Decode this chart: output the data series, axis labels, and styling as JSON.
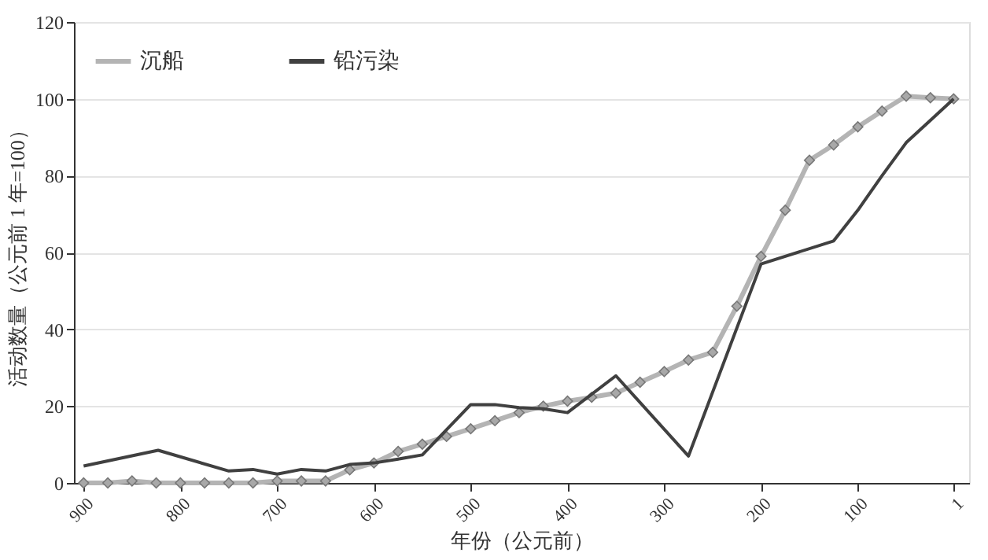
{
  "chart_data": {
    "type": "line",
    "xlabel": "年份（公元前）",
    "ylabel": "活动数量（公元前 1 年=100）",
    "xlim": [
      910,
      -15
    ],
    "xticks": [
      900,
      800,
      700,
      600,
      500,
      400,
      300,
      200,
      100,
      1
    ],
    "ylim": [
      0,
      120
    ],
    "yticks": [
      0,
      20,
      40,
      60,
      80,
      100,
      120
    ],
    "grid": "y",
    "legend": "top left",
    "series": [
      {
        "name": "沉船",
        "color": "#b4b4b4",
        "marker": "diamond",
        "x": [
          900,
          875,
          850,
          825,
          800,
          775,
          750,
          725,
          700,
          675,
          650,
          625,
          600,
          575,
          550,
          525,
          500,
          475,
          450,
          425,
          400,
          375,
          350,
          325,
          300,
          275,
          250,
          225,
          200,
          175,
          150,
          125,
          100,
          75,
          50,
          25,
          1
        ],
        "values": [
          0,
          0,
          0.5,
          0,
          0,
          0,
          0,
          0,
          0.5,
          0.5,
          0.5,
          3.4,
          5.2,
          8.2,
          10.1,
          12.1,
          14.1,
          16.2,
          18.3,
          20,
          21.3,
          22.3,
          23.4,
          26.2,
          29,
          32,
          34,
          46,
          59,
          71,
          84,
          88,
          92.7,
          96.8,
          100.7,
          100.3,
          100
        ]
      },
      {
        "name": "铅污染",
        "color": "#404040",
        "marker": "none",
        "x": [
          900,
          823,
          750,
          725,
          700,
          675,
          650,
          625,
          600,
          575,
          550,
          500,
          475,
          450,
          425,
          400,
          350,
          275,
          200,
          125,
          100,
          75,
          50,
          25,
          1
        ],
        "values": [
          4.4,
          8.5,
          3.1,
          3.5,
          2.3,
          3.5,
          3.1,
          4.8,
          5.2,
          6.2,
          7.3,
          20.4,
          20.4,
          19.6,
          19.3,
          18.3,
          27.9,
          7,
          57,
          63,
          71,
          80,
          88.6,
          94.4,
          100
        ]
      }
    ]
  }
}
